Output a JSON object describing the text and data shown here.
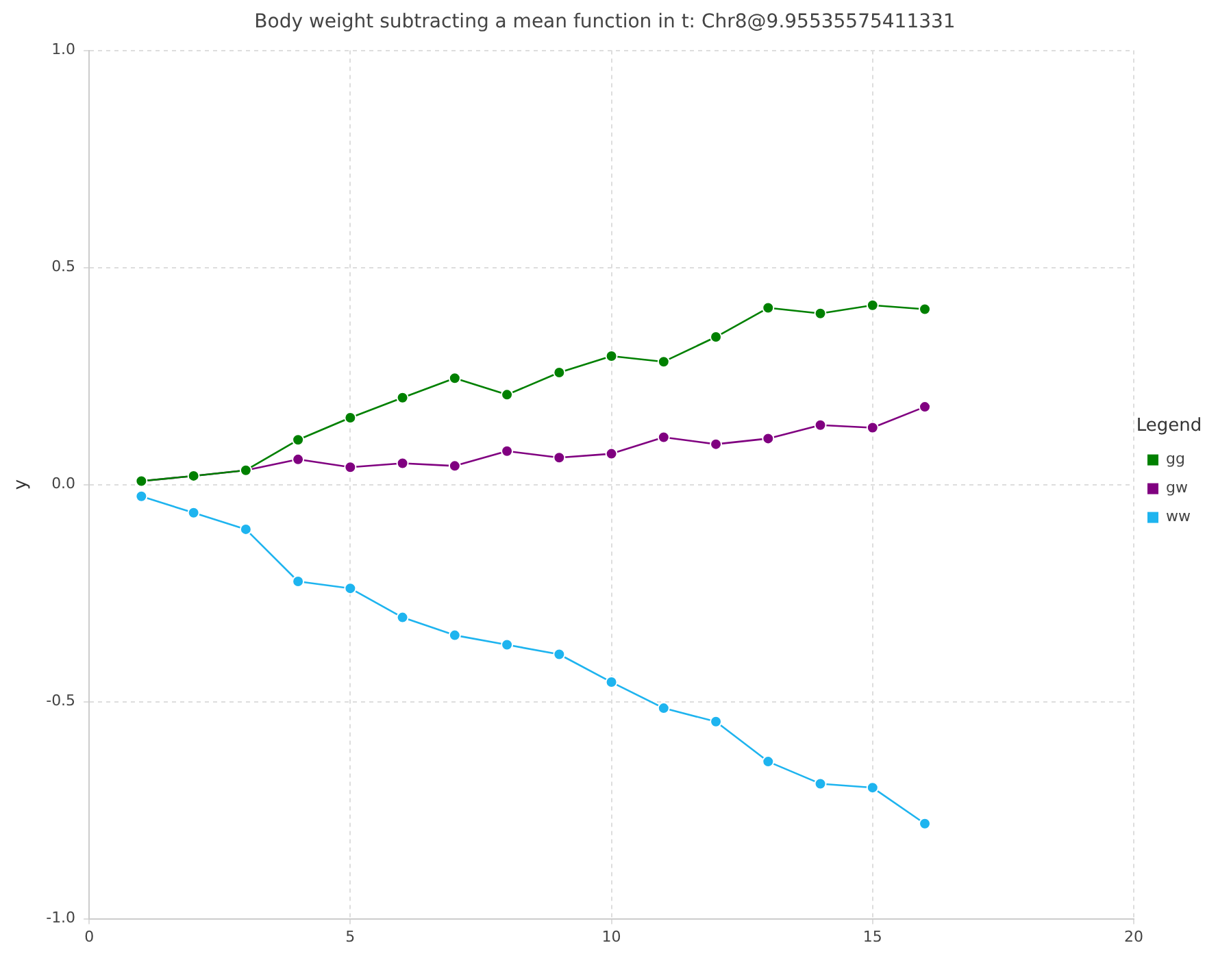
{
  "chart_data": {
    "type": "line",
    "title": "Body weight subtracting a mean function in t: Chr8@9.95535575411331",
    "ylabel": "y",
    "legend_title": "Legend",
    "legend": "right",
    "grid": true,
    "marker": "circle",
    "line_style": "solid",
    "x": [
      1,
      2,
      3,
      4,
      5,
      6,
      7,
      8,
      9,
      10,
      11,
      12,
      13,
      14,
      15,
      16
    ],
    "xlim": [
      0,
      20
    ],
    "xticks": [
      0,
      5,
      10,
      15,
      20
    ],
    "ylim": [
      -1,
      1
    ],
    "yticks": [
      {
        "value": -1,
        "label": "-1.0"
      },
      -0.5,
      {
        "value": 0,
        "label": "0.0"
      },
      0.5,
      {
        "value": 1,
        "label": "1.0"
      }
    ],
    "series": [
      {
        "name": "gg",
        "color": "#008000",
        "values": [
          0.008,
          0.02,
          0.033,
          0.103,
          0.154,
          0.2,
          0.245,
          0.207,
          0.258,
          0.296,
          0.283,
          0.34,
          0.407,
          0.394,
          0.413,
          0.404
        ]
      },
      {
        "name": "gw",
        "color": "#800080",
        "values": [
          0.008,
          0.02,
          0.033,
          0.058,
          0.04,
          0.049,
          0.043,
          0.077,
          0.062,
          0.071,
          0.109,
          0.093,
          0.106,
          0.137,
          0.131,
          0.179
        ]
      },
      {
        "name": "ww",
        "color": "#1eb4ef",
        "values": [
          -0.027,
          -0.065,
          -0.103,
          -0.223,
          -0.239,
          -0.306,
          -0.347,
          -0.369,
          -0.391,
          -0.455,
          -0.515,
          -0.546,
          -0.638,
          -0.689,
          -0.698,
          -0.781
        ]
      }
    ]
  }
}
